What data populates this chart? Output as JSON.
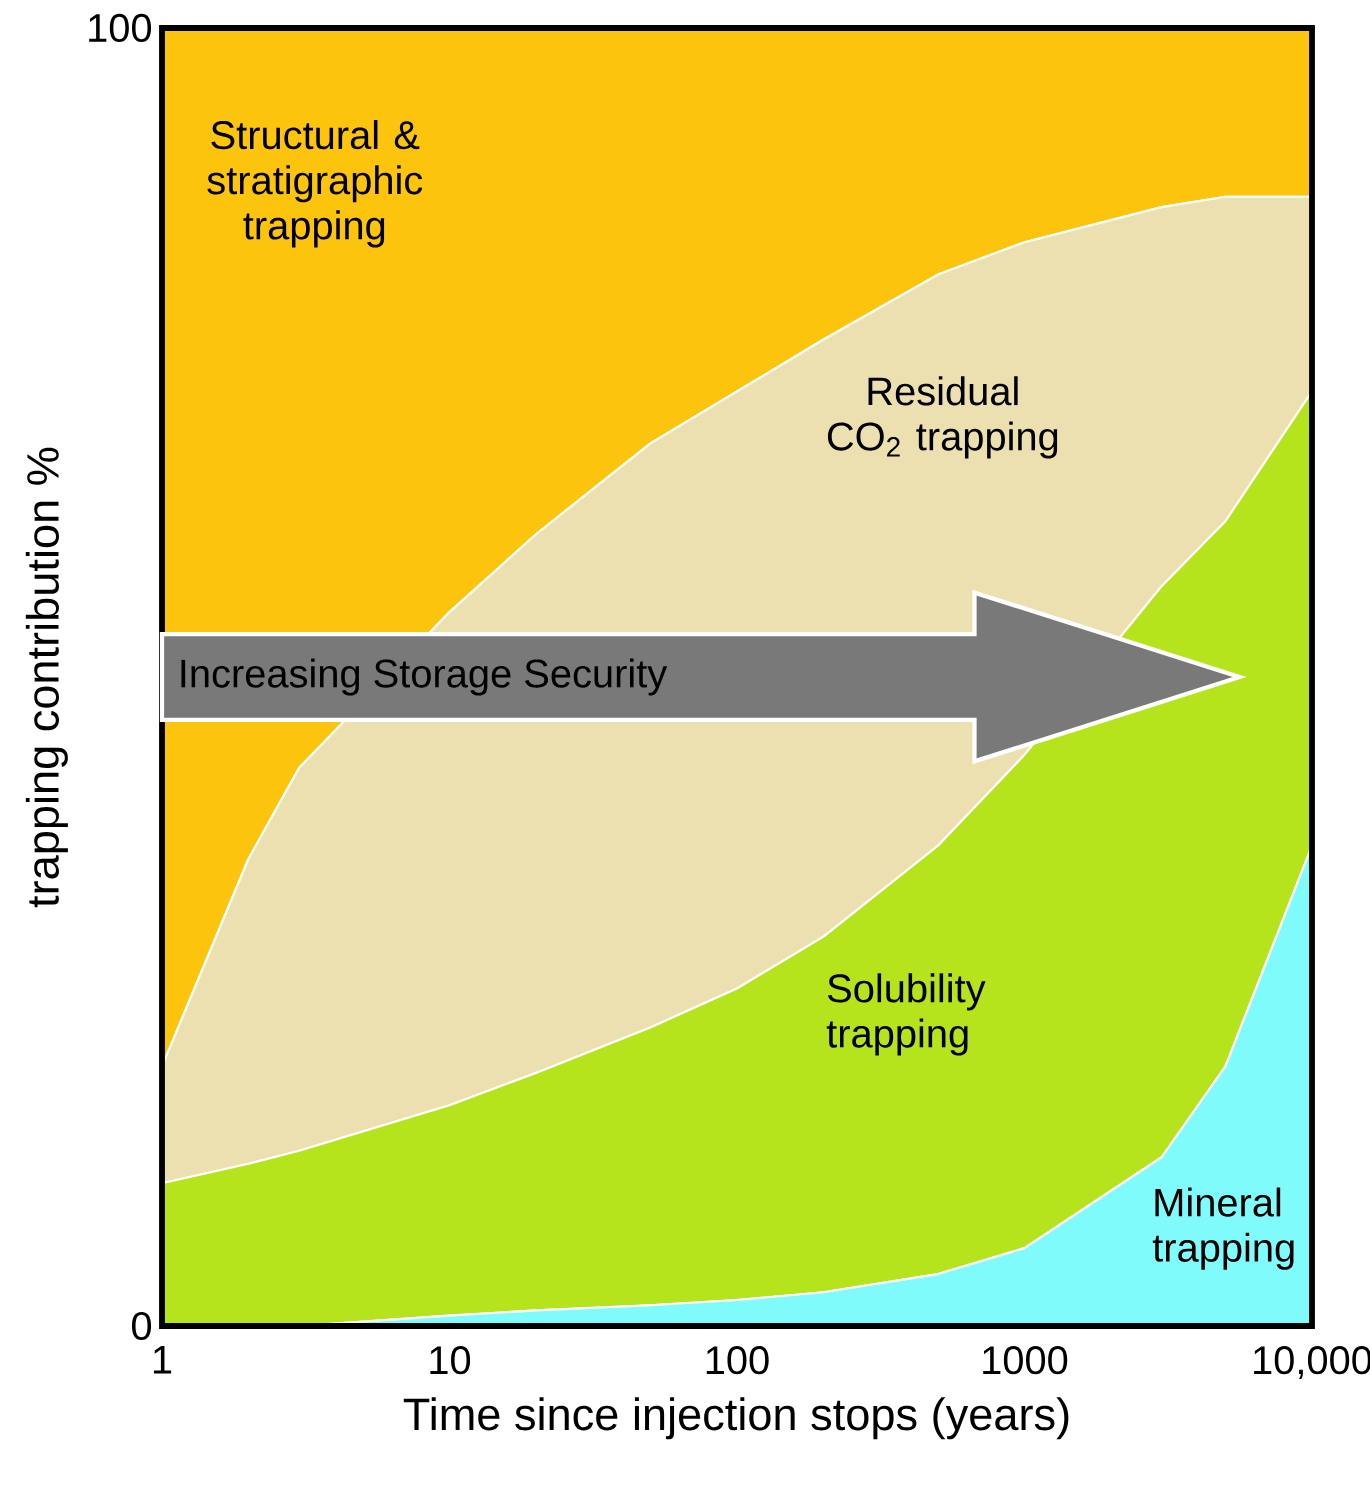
{
  "chart_data": {
    "type": "area",
    "stacked": true,
    "log": "x",
    "grid": false,
    "xlabel": "Time since injection stops (years)",
    "ylabel": "trapping contribution %",
    "x": [
      1,
      2,
      3,
      10,
      20,
      50,
      100,
      200,
      500,
      1000,
      3000,
      5000,
      10000
    ],
    "xlim": [
      1,
      10000
    ],
    "xticks": [
      1,
      10,
      100,
      1000,
      {
        "value": 10000,
        "label": "10,000"
      }
    ],
    "ylim": [
      0,
      100
    ],
    "yticks": [
      0,
      100
    ],
    "series": [
      {
        "name": "Mineral trapping",
        "color": "#80fbfb",
        "values": [
          0,
          0,
          0,
          0.8,
          1.2,
          1.6,
          2,
          2.6,
          4,
          6,
          13,
          20,
          37
        ]
      },
      {
        "name": "Solubility trapping",
        "color": "#b5e31c",
        "values": [
          11,
          12.5,
          13.5,
          16.2,
          18.3,
          21.4,
          24,
          27.4,
          33,
          38,
          44,
          42,
          35
        ]
      },
      {
        "name": "Residual CO$_{2}$ trapping",
        "color": "#ede0b0",
        "values": [
          9,
          23.5,
          29.5,
          38,
          41.5,
          45,
          46,
          46,
          44,
          39.5,
          29.2,
          25,
          15
        ]
      },
      {
        "name": "Structural & stratigraphic trapping",
        "color": "#fcc40c",
        "values": [
          80,
          64,
          57,
          45,
          39,
          32,
          28,
          24,
          19,
          16.5,
          13.8,
          13,
          13
        ]
      }
    ],
    "annotations": [
      "Increasing Storage Security"
    ]
  }
}
